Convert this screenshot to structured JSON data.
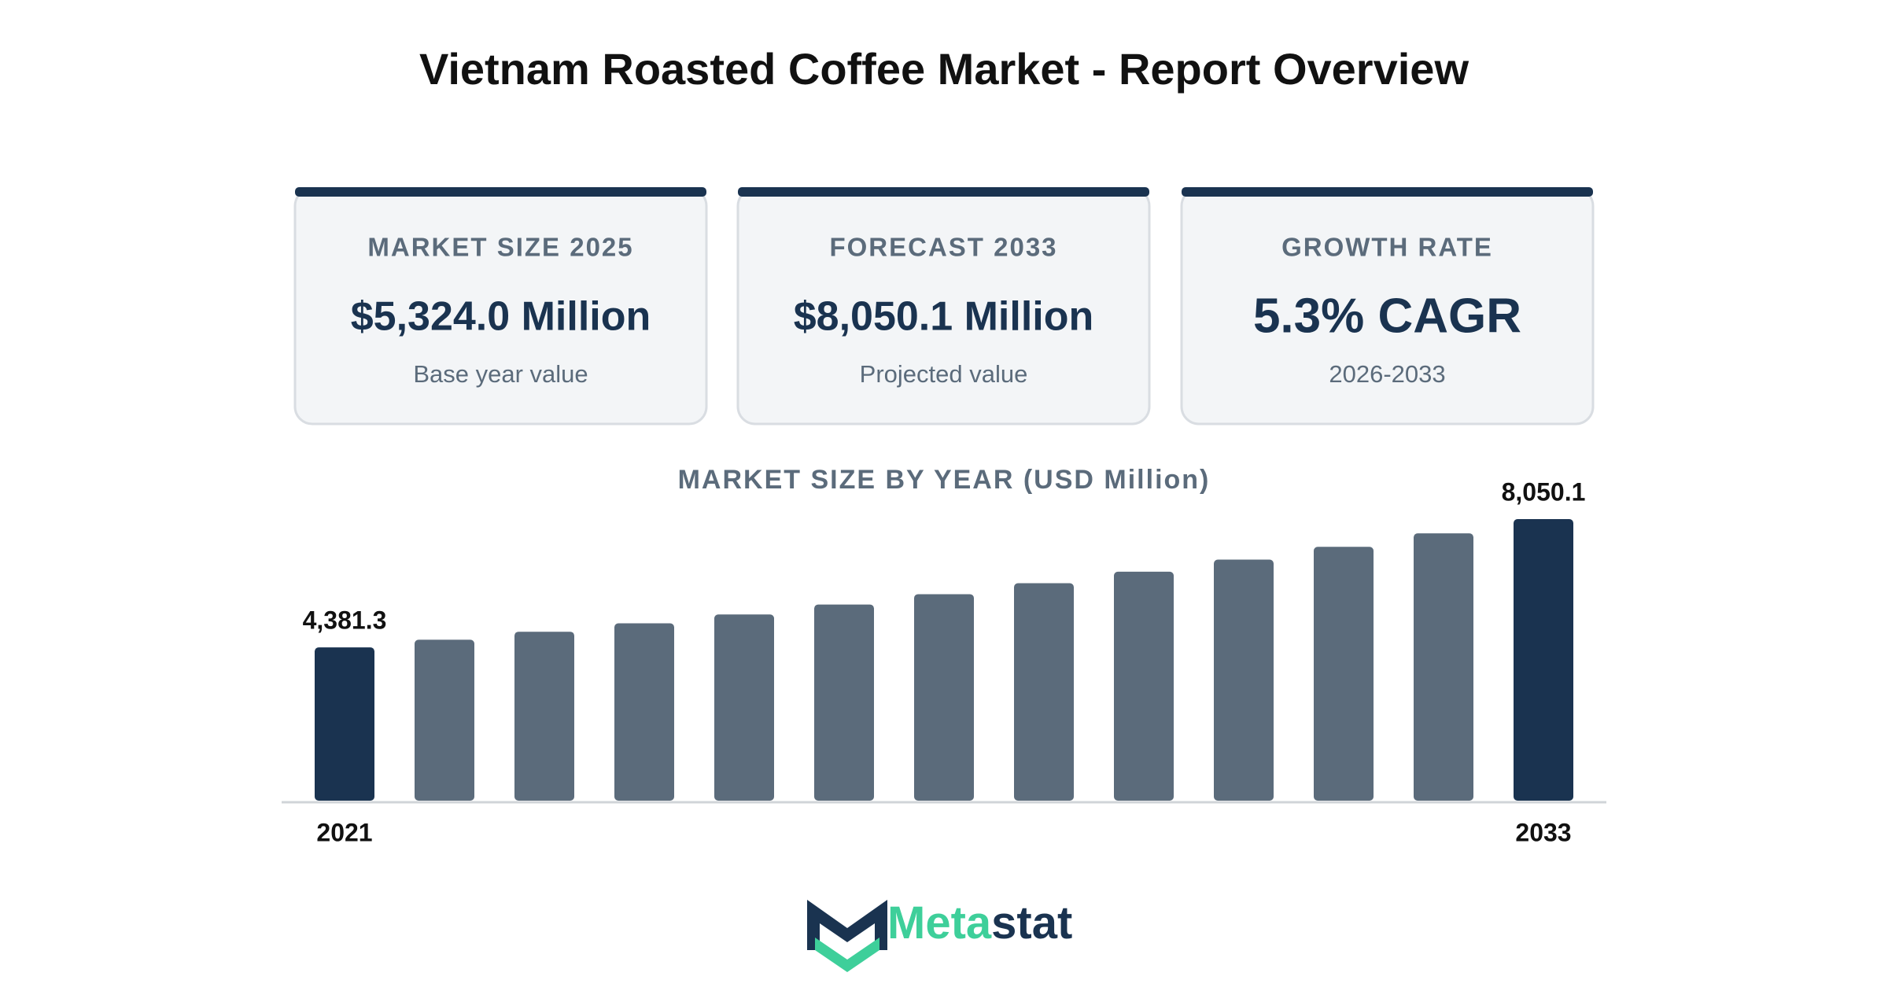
{
  "header": {
    "title": "Vietnam Roasted Coffee Market - Report Overview"
  },
  "cards": [
    {
      "label": "MARKET SIZE 2025",
      "value": "$5,324.0 Million",
      "note": "Base year value"
    },
    {
      "label": "FORECAST 2033",
      "value": "$8,050.1 Million",
      "note": "Projected value"
    },
    {
      "label": "GROWTH RATE",
      "value": "5.3% CAGR",
      "note": "2026-2033"
    }
  ],
  "chart_data": {
    "type": "bar",
    "title": "MARKET SIZE BY YEAR (USD Million)",
    "categories": [
      "2021",
      null,
      null,
      null,
      null,
      null,
      null,
      null,
      null,
      null,
      null,
      null,
      "2033"
    ],
    "values": [
      4381.3,
      4600,
      4830,
      5070,
      5324.0,
      5606.2,
      5903.3,
      6216.2,
      6545.6,
      6892.5,
      7257.8,
      7642.5,
      8050.1
    ],
    "value_labels": [
      "4,381.3",
      null,
      null,
      null,
      null,
      null,
      null,
      null,
      null,
      null,
      null,
      null,
      "8,050.1"
    ],
    "colors": [
      "#1a3350",
      "#5b6b7b",
      "#5b6b7b",
      "#5b6b7b",
      "#5b6b7b",
      "#5b6b7b",
      "#5b6b7b",
      "#5b6b7b",
      "#5b6b7b",
      "#5b6b7b",
      "#5b6b7b",
      "#5b6b7b",
      "#1a3350"
    ]
  },
  "logo": {
    "parts": [
      "Meta",
      "stat"
    ]
  }
}
